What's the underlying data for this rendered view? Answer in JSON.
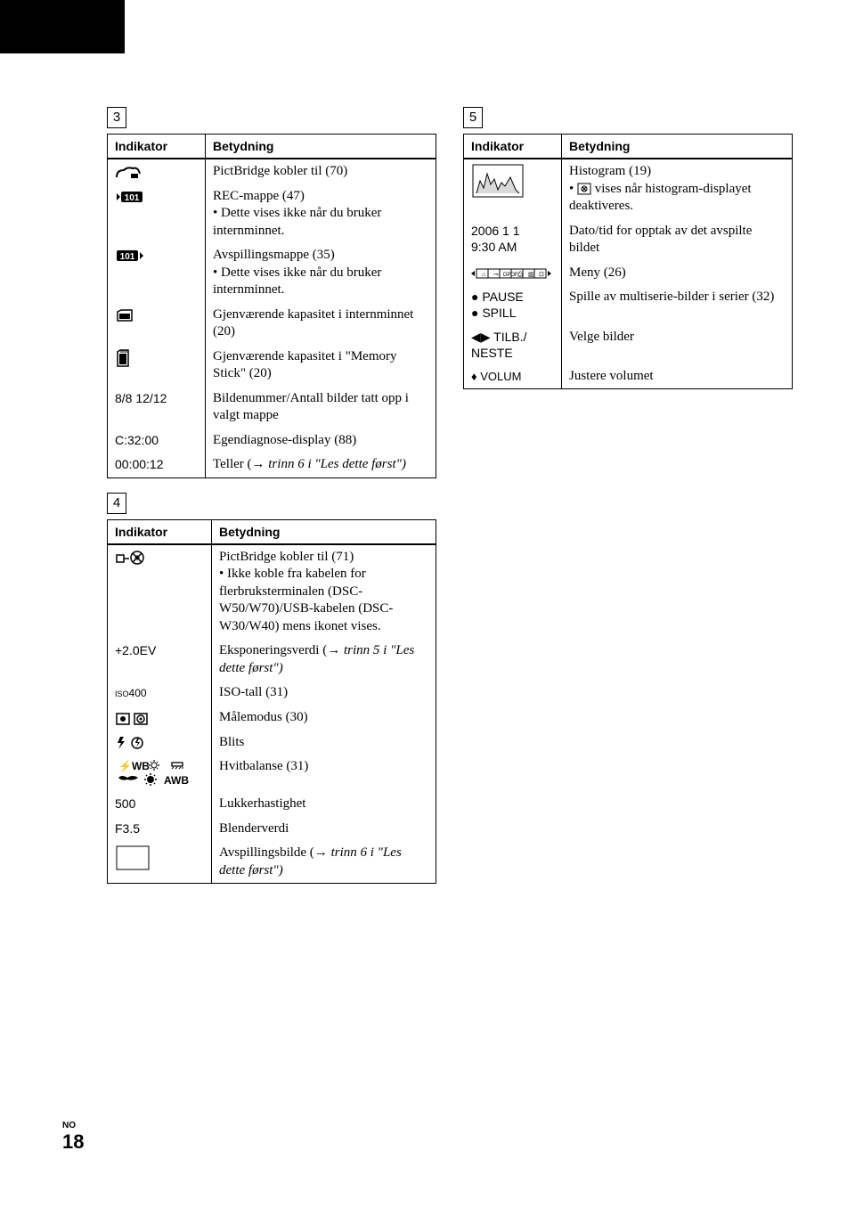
{
  "labels": {
    "box3": "3",
    "box4": "4",
    "box5": "5",
    "header_indikator": "Indikator",
    "header_betydning": "Betydning"
  },
  "table3": [
    {
      "ind": "icon_pictbridge",
      "txt": [
        "PictBridge kobler til (70)"
      ]
    },
    {
      "ind": "icon_rec101",
      "txt": [
        "REC-mappe (47)",
        {
          "bullet": true,
          "t": "Dette vises ikke når du bruker internminnet."
        }
      ]
    },
    {
      "ind": "icon_play101",
      "txt": [
        "Avspillingsmappe (35)",
        {
          "bullet": true,
          "t": "Dette vises ikke når du bruker internminnet."
        }
      ]
    },
    {
      "ind": "icon_intcap",
      "txt": [
        "Gjenværende kapasitet i internminnet (20)"
      ]
    },
    {
      "ind": "icon_mscap",
      "txt": [
        "Gjenværende kapasitet i \"Memory Stick\" (20)"
      ]
    },
    {
      "ind": "8/8 12/12",
      "txt": [
        "Bildenummer/Antall bilder tatt opp i valgt mappe"
      ]
    },
    {
      "ind": "C:32:00",
      "txt": [
        "Egendiagnose-display (88)"
      ]
    },
    {
      "ind": "00:00:12",
      "txt": [
        {
          "t": "Teller (",
          "arrow": true,
          "after": " trinn 6 i \"Les dette først\")",
          "italic_after": true
        }
      ]
    }
  ],
  "table4": [
    {
      "ind": "icon_usbno",
      "txt": [
        "PictBridge kobler til (71)",
        {
          "bullet": true,
          "t": "Ikke koble fra kabelen for flerbruksterminalen (DSC-W50/W70)/USB-kabelen (DSC-W30/W40) mens ikonet vises."
        }
      ]
    },
    {
      "ind": "+2.0EV",
      "txt": [
        {
          "t": "Eksponeringsverdi (",
          "arrow": true,
          "after": " trinn 5 i \"Les dette først\")",
          "italic_after": true
        }
      ]
    },
    {
      "ind": "iso400",
      "txt": [
        "ISO-tall (31)"
      ]
    },
    {
      "ind": "icon_metering",
      "txt": [
        "Målemodus (30)"
      ]
    },
    {
      "ind": "icon_flash",
      "txt": [
        "Blits"
      ]
    },
    {
      "ind": "icon_wb",
      "txt": [
        "Hvitbalanse (31)"
      ]
    },
    {
      "ind": "500",
      "txt": [
        "Lukkerhastighet"
      ]
    },
    {
      "ind": "F3.5",
      "txt": [
        "Blenderverdi"
      ]
    },
    {
      "ind": "icon_blank",
      "txt": [
        {
          "t": "Avspillingsbilde (",
          "arrow": true,
          "after": " trinn 6 i \"Les dette først\")",
          "italic_after": true
        }
      ]
    }
  ],
  "table5": [
    {
      "ind": "icon_histogram",
      "txt": [
        "Histogram (19)",
        {
          "bullet": true,
          "t": " vises når histogram-displayet deaktiveres.",
          "prefix_icon": "icon_histoff"
        }
      ]
    },
    {
      "ind": "2006 1 1\n9:30 AM",
      "txt": [
        "Dato/tid for opptak av det avspilte bildet"
      ]
    },
    {
      "ind": "icon_menubar",
      "txt": [
        "Meny (26)"
      ]
    },
    {
      "ind": "● PAUSE\n● SPILL",
      "txt": [
        "Spille av multiserie-bilder i serier (32)"
      ]
    },
    {
      "ind": "◀▶ TILB./\nNESTE",
      "txt": [
        "Velge bilder"
      ]
    },
    {
      "ind": "icon_volume",
      "txt": [
        "Justere volumet"
      ]
    }
  ],
  "footer": {
    "lang": "NO",
    "page": "18"
  }
}
